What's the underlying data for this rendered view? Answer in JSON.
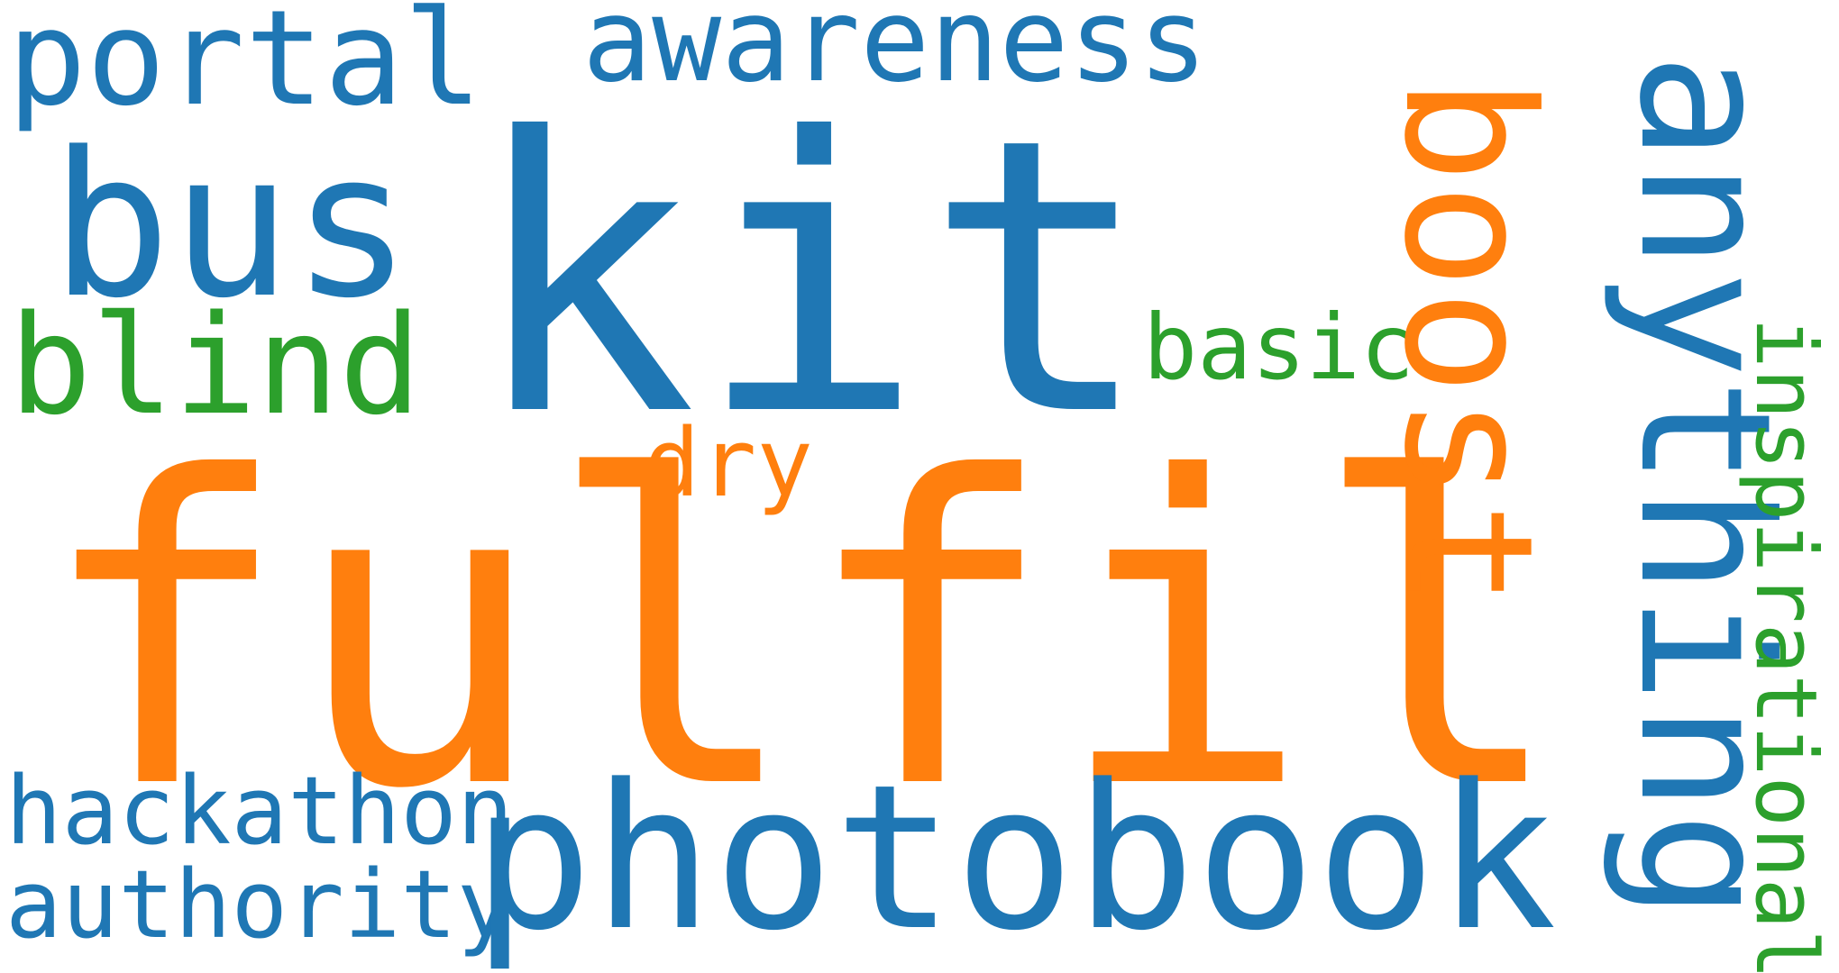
{
  "words": {
    "portal": "portal",
    "awareness": "awareness",
    "kit": "kit",
    "bus": "bus",
    "blind": "blind",
    "basic": "basic",
    "dry": "dry",
    "fulfil": "fulfil",
    "boost": "boost",
    "anything": "anything",
    "inspirational": "inspirational",
    "hackathon": "hackathon",
    "authority": "authority",
    "photobook": "photobook"
  },
  "colors": {
    "blue": "#1f77b4",
    "orange": "#ff7f0e",
    "green": "#2ca02c"
  }
}
